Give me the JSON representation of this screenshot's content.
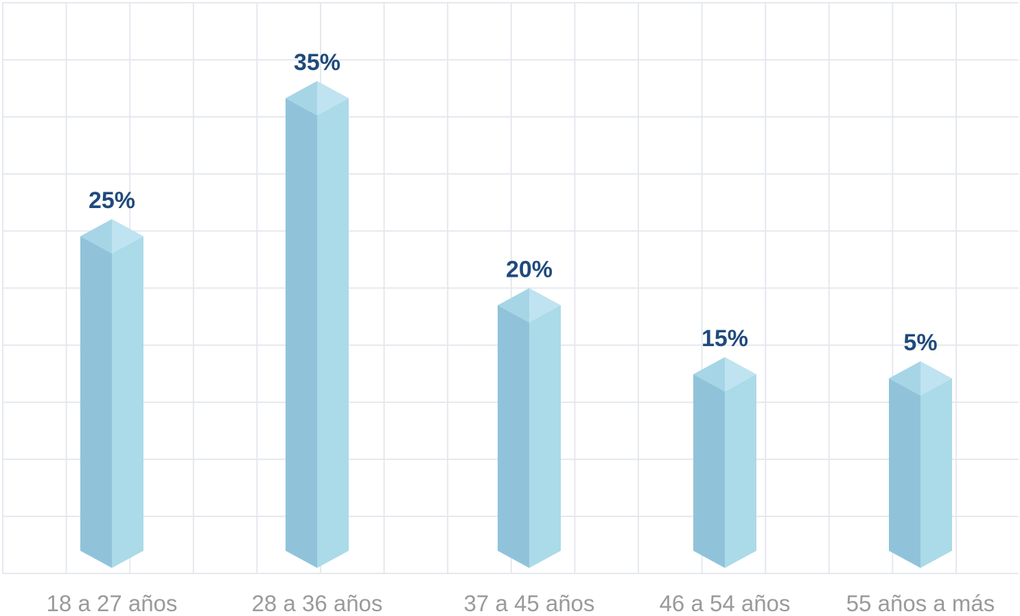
{
  "chart_data": {
    "type": "bar",
    "style": "3d-isometric-columns",
    "categories": [
      "18 a 27 años",
      "28 a 36 años",
      "37 a 45 años",
      "46 a 54 años",
      "55 años a más"
    ],
    "values": [
      25,
      35,
      20,
      15,
      5
    ],
    "value_labels": [
      "25%",
      "35%",
      "20%",
      "15%",
      "5%"
    ],
    "title": "",
    "xlabel": "",
    "ylabel": "",
    "grid": true,
    "legend": "none"
  },
  "colors": {
    "bar_left": "#90c3da",
    "bar_right": "#abdae8",
    "bar_top_left": "#a6d5e6",
    "bar_top_right": "#bfe3f0",
    "value_text": "#1f4a7c",
    "category_text": "#9a9a9a",
    "grid": "#e4e8ee"
  }
}
